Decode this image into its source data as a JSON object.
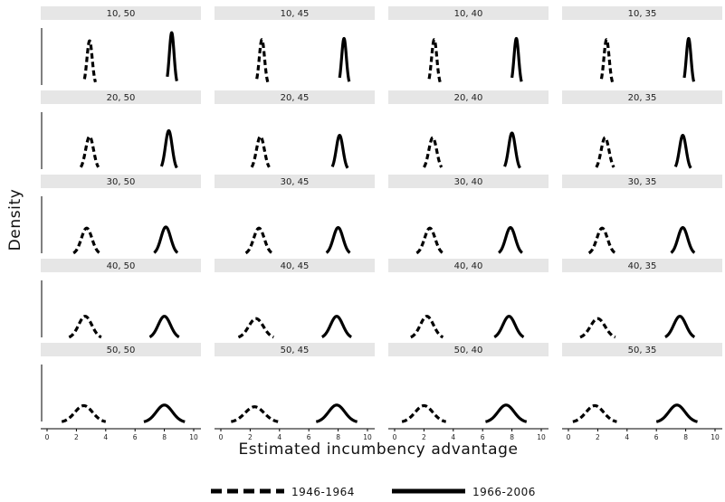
{
  "chart_data": {
    "type": "line",
    "xlabel": "Estimated incumbency advantage",
    "ylabel": "Density",
    "xlim": [
      0,
      10
    ],
    "x_ticks": [
      0,
      2,
      4,
      6,
      8,
      10
    ],
    "x_tick_labels": [
      "0",
      "2",
      "4",
      "6",
      "8",
      "10"
    ],
    "grid": false,
    "legend_position": "bottom",
    "series": [
      {
        "name": "1946-1964",
        "line_style": "dashed",
        "color": "#000000"
      },
      {
        "name": "1966-2006",
        "line_style": "solid",
        "color": "#000000"
      }
    ],
    "panels": [
      {
        "label": "10, 50",
        "curves": [
          {
            "series": "1946-1964",
            "mean": 2.9,
            "sd": 0.18,
            "xrange": [
              2.55,
              3.3
            ],
            "peak": 0.78
          },
          {
            "series": "1966-2006",
            "mean": 8.5,
            "sd": 0.16,
            "xrange": [
              8.2,
              8.85
            ],
            "peak": 0.92
          }
        ]
      },
      {
        "label": "10, 45",
        "curves": [
          {
            "series": "1946-1964",
            "mean": 2.8,
            "sd": 0.18,
            "xrange": [
              2.45,
              3.2
            ],
            "peak": 0.8
          },
          {
            "series": "1966-2006",
            "mean": 8.4,
            "sd": 0.16,
            "xrange": [
              8.1,
              8.75
            ],
            "peak": 0.82
          }
        ]
      },
      {
        "label": "10, 40",
        "curves": [
          {
            "series": "1946-1964",
            "mean": 2.7,
            "sd": 0.18,
            "xrange": [
              2.35,
              3.1
            ],
            "peak": 0.8
          },
          {
            "series": "1966-2006",
            "mean": 8.3,
            "sd": 0.16,
            "xrange": [
              8.0,
              8.65
            ],
            "peak": 0.82
          }
        ]
      },
      {
        "label": "10, 35",
        "curves": [
          {
            "series": "1946-1964",
            "mean": 2.6,
            "sd": 0.18,
            "xrange": [
              2.25,
              3.0
            ],
            "peak": 0.8
          },
          {
            "series": "1966-2006",
            "mean": 8.2,
            "sd": 0.16,
            "xrange": [
              7.9,
              8.55
            ],
            "peak": 0.82
          }
        ]
      },
      {
        "label": "20, 50",
        "curves": [
          {
            "series": "1946-1964",
            "mean": 2.9,
            "sd": 0.27,
            "xrange": [
              2.3,
              3.5
            ],
            "peak": 0.58
          },
          {
            "series": "1966-2006",
            "mean": 8.3,
            "sd": 0.23,
            "xrange": [
              7.8,
              8.85
            ],
            "peak": 0.68
          }
        ]
      },
      {
        "label": "20, 45",
        "curves": [
          {
            "series": "1946-1964",
            "mean": 2.7,
            "sd": 0.27,
            "xrange": [
              2.1,
              3.3
            ],
            "peak": 0.58
          },
          {
            "series": "1966-2006",
            "mean": 8.1,
            "sd": 0.23,
            "xrange": [
              7.6,
              8.65
            ],
            "peak": 0.6
          }
        ]
      },
      {
        "label": "20, 40",
        "curves": [
          {
            "series": "1946-1964",
            "mean": 2.6,
            "sd": 0.27,
            "xrange": [
              2.0,
              3.2
            ],
            "peak": 0.56
          },
          {
            "series": "1966-2006",
            "mean": 8.0,
            "sd": 0.23,
            "xrange": [
              7.5,
              8.55
            ],
            "peak": 0.64
          }
        ]
      },
      {
        "label": "20, 35",
        "curves": [
          {
            "series": "1946-1964",
            "mean": 2.5,
            "sd": 0.27,
            "xrange": [
              1.9,
              3.1
            ],
            "peak": 0.56
          },
          {
            "series": "1966-2006",
            "mean": 7.8,
            "sd": 0.23,
            "xrange": [
              7.3,
              8.35
            ],
            "peak": 0.6
          }
        ]
      },
      {
        "label": "30, 50",
        "curves": [
          {
            "series": "1946-1964",
            "mean": 2.7,
            "sd": 0.36,
            "xrange": [
              1.8,
              3.6
            ],
            "peak": 0.45
          },
          {
            "series": "1966-2006",
            "mean": 8.1,
            "sd": 0.33,
            "xrange": [
              7.3,
              8.9
            ],
            "peak": 0.47
          }
        ]
      },
      {
        "label": "30, 45",
        "curves": [
          {
            "series": "1946-1964",
            "mean": 2.6,
            "sd": 0.36,
            "xrange": [
              1.7,
              3.5
            ],
            "peak": 0.45
          },
          {
            "series": "1966-2006",
            "mean": 8.0,
            "sd": 0.33,
            "xrange": [
              7.2,
              8.8
            ],
            "peak": 0.46
          }
        ]
      },
      {
        "label": "30, 40",
        "curves": [
          {
            "series": "1946-1964",
            "mean": 2.4,
            "sd": 0.36,
            "xrange": [
              1.5,
              3.3
            ],
            "peak": 0.45
          },
          {
            "series": "1966-2006",
            "mean": 7.9,
            "sd": 0.33,
            "xrange": [
              7.1,
              8.7
            ],
            "peak": 0.46
          }
        ]
      },
      {
        "label": "30, 35",
        "curves": [
          {
            "series": "1946-1964",
            "mean": 2.3,
            "sd": 0.36,
            "xrange": [
              1.4,
              3.2
            ],
            "peak": 0.45
          },
          {
            "series": "1966-2006",
            "mean": 7.8,
            "sd": 0.33,
            "xrange": [
              7.0,
              8.6
            ],
            "peak": 0.46
          }
        ]
      },
      {
        "label": "40, 50",
        "curves": [
          {
            "series": "1946-1964",
            "mean": 2.6,
            "sd": 0.45,
            "xrange": [
              1.5,
              3.7
            ],
            "peak": 0.38
          },
          {
            "series": "1966-2006",
            "mean": 8.0,
            "sd": 0.42,
            "xrange": [
              7.0,
              9.0
            ],
            "peak": 0.38
          }
        ]
      },
      {
        "label": "40, 45",
        "curves": [
          {
            "series": "1946-1964",
            "mean": 2.4,
            "sd": 0.5,
            "xrange": [
              1.2,
              3.6
            ],
            "peak": 0.34
          },
          {
            "series": "1966-2006",
            "mean": 7.9,
            "sd": 0.42,
            "xrange": [
              6.9,
              8.9
            ],
            "peak": 0.38
          }
        ]
      },
      {
        "label": "40, 40",
        "curves": [
          {
            "series": "1946-1964",
            "mean": 2.2,
            "sd": 0.45,
            "xrange": [
              1.1,
              3.3
            ],
            "peak": 0.38
          },
          {
            "series": "1966-2006",
            "mean": 7.8,
            "sd": 0.42,
            "xrange": [
              6.8,
              8.8
            ],
            "peak": 0.38
          }
        ]
      },
      {
        "label": "40, 35",
        "curves": [
          {
            "series": "1946-1964",
            "mean": 2.0,
            "sd": 0.5,
            "xrange": [
              0.8,
              3.2
            ],
            "peak": 0.34
          },
          {
            "series": "1966-2006",
            "mean": 7.6,
            "sd": 0.42,
            "xrange": [
              6.6,
              8.6
            ],
            "peak": 0.38
          }
        ]
      },
      {
        "label": "50, 50",
        "curves": [
          {
            "series": "1946-1964",
            "mean": 2.5,
            "sd": 0.6,
            "xrange": [
              1.0,
              4.0
            ],
            "peak": 0.29
          },
          {
            "series": "1966-2006",
            "mean": 8.0,
            "sd": 0.55,
            "xrange": [
              6.6,
              9.4
            ],
            "peak": 0.3
          }
        ]
      },
      {
        "label": "50, 45",
        "curves": [
          {
            "series": "1946-1964",
            "mean": 2.3,
            "sd": 0.65,
            "xrange": [
              0.7,
              3.9
            ],
            "peak": 0.27
          },
          {
            "series": "1966-2006",
            "mean": 7.9,
            "sd": 0.55,
            "xrange": [
              6.5,
              9.3
            ],
            "peak": 0.3
          }
        ]
      },
      {
        "label": "50, 40",
        "curves": [
          {
            "series": "1946-1964",
            "mean": 2.0,
            "sd": 0.6,
            "xrange": [
              0.5,
              3.5
            ],
            "peak": 0.29
          },
          {
            "series": "1966-2006",
            "mean": 7.6,
            "sd": 0.55,
            "xrange": [
              6.2,
              9.0
            ],
            "peak": 0.3
          }
        ]
      },
      {
        "label": "50, 35",
        "curves": [
          {
            "series": "1946-1964",
            "mean": 1.8,
            "sd": 0.6,
            "xrange": [
              0.3,
              3.3
            ],
            "peak": 0.29
          },
          {
            "series": "1966-2006",
            "mean": 7.4,
            "sd": 0.55,
            "xrange": [
              6.0,
              8.8
            ],
            "peak": 0.3
          }
        ]
      }
    ]
  }
}
